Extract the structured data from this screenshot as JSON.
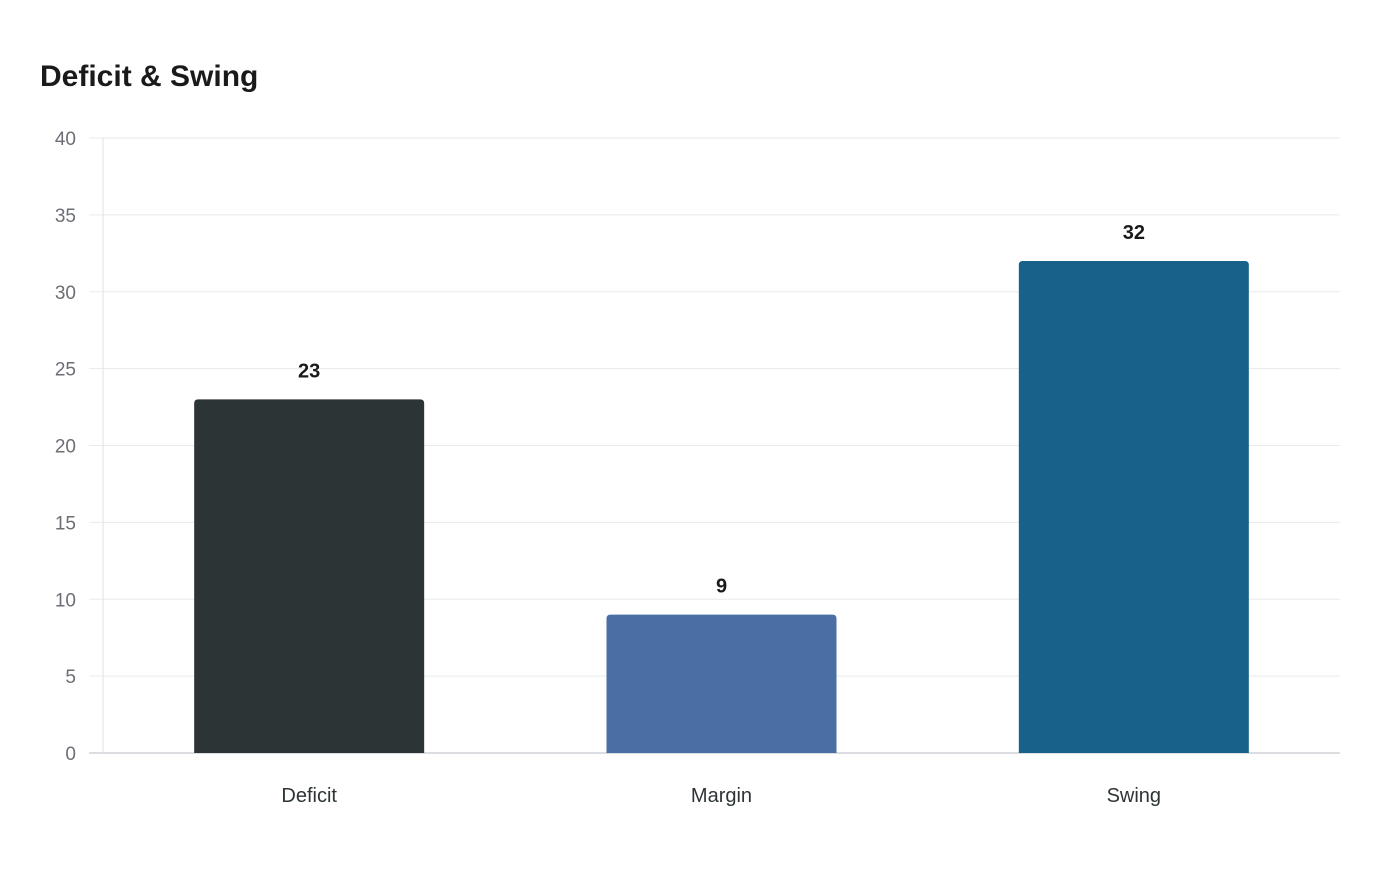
{
  "chart_data": {
    "type": "bar",
    "title": "Deficit & Swing",
    "categories": [
      "Deficit",
      "Margin",
      "Swing"
    ],
    "values": [
      23,
      9,
      32
    ],
    "colors": [
      "#2d3436",
      "#4a6fa5",
      "#17618a"
    ],
    "xlabel": "",
    "ylabel": "",
    "ylim": [
      0,
      40
    ],
    "yticks": [
      0,
      5,
      10,
      15,
      20,
      25,
      30,
      35,
      40
    ],
    "grid": true,
    "data_labels": true
  }
}
